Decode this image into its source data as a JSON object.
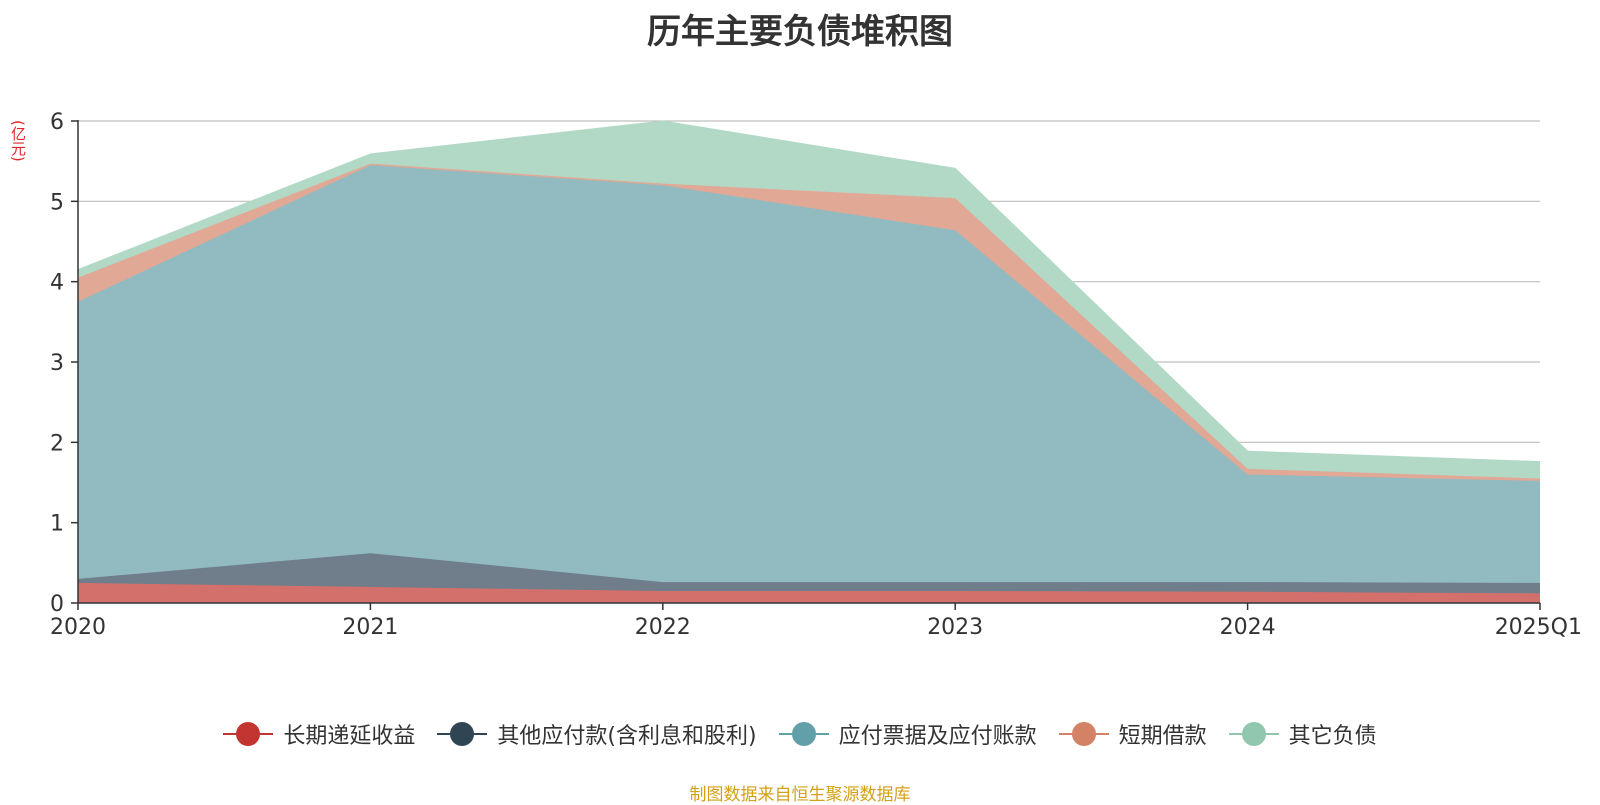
{
  "title": "历年主要负债堆积图",
  "unit": "(亿元)",
  "source": "制图数据来自恒生聚源数据库",
  "chart_data": {
    "type": "area",
    "stacked": true,
    "title": "历年主要负债堆积图",
    "ylabel": "(亿元)",
    "x": [
      "2020",
      "2021",
      "2022",
      "2023",
      "2024",
      "2025Q1"
    ],
    "ylim": [
      0,
      6
    ],
    "yticks": [
      0,
      1,
      2,
      3,
      4,
      5,
      6
    ],
    "grid": true,
    "legend_position": "bottom",
    "series": [
      {
        "name": "长期递延收益",
        "color": "#c23531",
        "fill": "#d4706c",
        "values": [
          0.25,
          0.2,
          0.15,
          0.15,
          0.14,
          0.12
        ]
      },
      {
        "name": "其他应付款(含利息和股利)",
        "color": "#2f4554",
        "fill": "#6f7e8a",
        "values": [
          0.05,
          0.42,
          0.11,
          0.11,
          0.12,
          0.13
        ]
      },
      {
        "name": "应付票据及应付账款",
        "color": "#61a0a8",
        "fill": "#91bbc1",
        "values": [
          3.45,
          4.83,
          4.94,
          4.38,
          1.34,
          1.27
        ]
      },
      {
        "name": "短期借款",
        "color": "#d48265",
        "fill": "#e1a896",
        "values": [
          0.3,
          0.02,
          0.02,
          0.4,
          0.07,
          0.03
        ]
      },
      {
        "name": "其它负债",
        "color": "#91c7ae",
        "fill": "#b2d9c6",
        "values": [
          0.1,
          0.12,
          0.78,
          0.37,
          0.22,
          0.21
        ]
      }
    ]
  }
}
